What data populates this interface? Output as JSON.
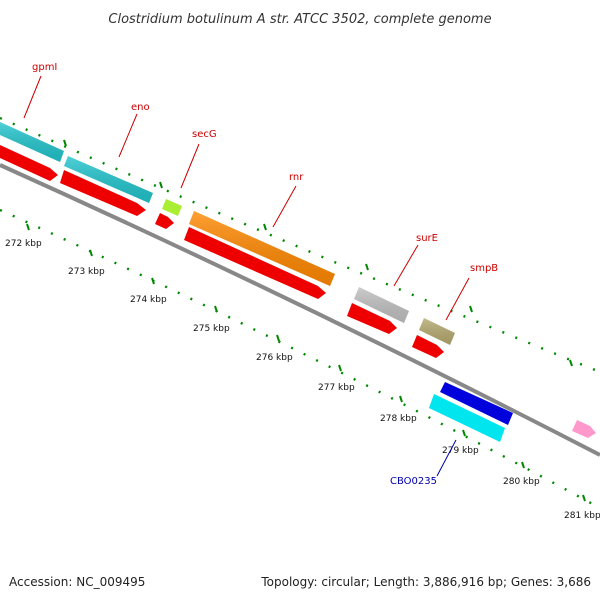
{
  "title": "Clostridium botulinum A str. ATCC 3502, complete genome",
  "footer": {
    "accession": "Accession: NC_009495",
    "summary": "Topology: circular; Length: 3,886,916 bp; Genes: 3,686"
  },
  "tick_labels": [
    "272 kbp",
    "273 kbp",
    "274 kbp",
    "275 kbp",
    "276 kbp",
    "277 kbp",
    "278 kbp",
    "279 kbp",
    "280 kbp",
    "281 kbp"
  ],
  "gene_labels": {
    "gpmI": "gpmI",
    "eno": "eno",
    "secG": "secG",
    "rnr": "rnr",
    "surE": "surE",
    "smpB": "smpB",
    "CBO0235": "CBO0235"
  },
  "colors": {
    "cds_red": "#ee0000",
    "gpmI_eno": "#22c4cc",
    "secG": "#aaee33",
    "rnr": "#ff8800",
    "surE": "#c0c0c0",
    "smpB": "#b5aa70",
    "blue_gene": "#0000dd",
    "cyan_gene": "#00e5ee",
    "pink_gene": "#ff99cc",
    "backbone": "#888888",
    "ticks": "#008800"
  }
}
